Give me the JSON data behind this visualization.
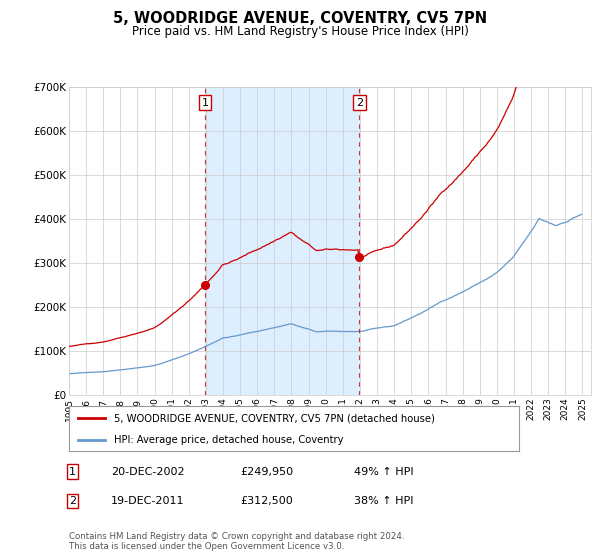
{
  "title": "5, WOODRIDGE AVENUE, COVENTRY, CV5 7PN",
  "subtitle": "Price paid vs. HM Land Registry's House Price Index (HPI)",
  "legend_line1": "5, WOODRIDGE AVENUE, COVENTRY, CV5 7PN (detached house)",
  "legend_line2": "HPI: Average price, detached house, Coventry",
  "red_color": "#cc0000",
  "blue_color": "#6699cc",
  "shading_color": "#ddeeff",
  "annotation1_date": "20-DEC-2002",
  "annotation1_price": "£249,950",
  "annotation1_hpi": "49% ↑ HPI",
  "annotation2_date": "19-DEC-2011",
  "annotation2_price": "£312,500",
  "annotation2_hpi": "38% ↑ HPI",
  "footer": "Contains HM Land Registry data © Crown copyright and database right 2024.\nThis data is licensed under the Open Government Licence v3.0.",
  "ylim_max": 700000,
  "yticks": [
    0,
    100000,
    200000,
    300000,
    400000,
    500000,
    600000,
    700000
  ],
  "ytick_labels": [
    "£0",
    "£100K",
    "£200K",
    "£300K",
    "£400K",
    "£500K",
    "£600K",
    "£700K"
  ]
}
